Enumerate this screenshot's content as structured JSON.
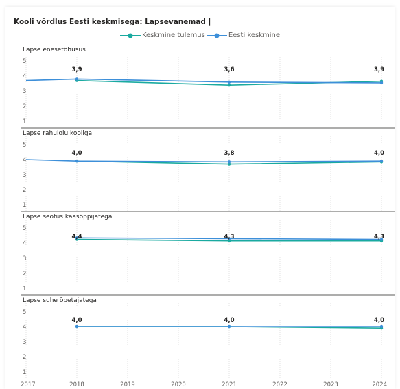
{
  "title": "Kooli võrdlus Eesti keskmisega: Lapsevanemad |",
  "colors": {
    "series1": "#1aaaa0",
    "series2": "#3d8fd9",
    "divider": "#252423",
    "grid": "#d9d9d9"
  },
  "chart_data": {
    "type": "line",
    "x_ticks": [
      "2017",
      "2018",
      "2019",
      "2020",
      "2021",
      "2022",
      "2023",
      "2024"
    ],
    "xlim": [
      2017,
      2024
    ],
    "ylim": [
      1,
      5
    ],
    "y_ticks": [
      "1",
      "2",
      "3",
      "4",
      "5"
    ],
    "grid": true,
    "legend_position": "top-center",
    "legend": [
      {
        "name": "Keskmine tulemus",
        "color": "#1aaaa0"
      },
      {
        "name": "Eesti keskmine",
        "color": "#3d8fd9"
      }
    ],
    "panels": [
      {
        "label": "Lapse enesetõhusus",
        "series": [
          {
            "name": "Keskmine tulemus",
            "x": [
              2018,
              2021,
              2024
            ],
            "y": [
              3.7,
              3.4,
              3.65
            ]
          },
          {
            "name": "Eesti keskmine",
            "x": [
              2017,
              2018,
              2021,
              2024
            ],
            "y": [
              3.7,
              3.8,
              3.6,
              3.55
            ]
          }
        ],
        "data_labels": [
          {
            "x": 2018,
            "text": "3,9"
          },
          {
            "x": 2021,
            "text": "3,6"
          },
          {
            "x": 2024,
            "text": "3,9"
          }
        ]
      },
      {
        "label": "Lapse rahulolu kooliga",
        "series": [
          {
            "name": "Keskmine tulemus",
            "x": [
              2018,
              2021,
              2024
            ],
            "y": [
              3.9,
              3.7,
              3.85
            ]
          },
          {
            "name": "Eesti keskmine",
            "x": [
              2017,
              2018,
              2021,
              2024
            ],
            "y": [
              4.0,
              3.9,
              3.85,
              3.9
            ]
          }
        ],
        "data_labels": [
          {
            "x": 2018,
            "text": "4,0"
          },
          {
            "x": 2021,
            "text": "3,8"
          },
          {
            "x": 2024,
            "text": "4,0"
          }
        ]
      },
      {
        "label": "Lapse seotus kaasõppijatega",
        "series": [
          {
            "name": "Keskmine tulemus",
            "x": [
              2018,
              2021,
              2024
            ],
            "y": [
              4.25,
              4.15,
              4.15
            ]
          },
          {
            "name": "Eesti keskmine",
            "x": [
              2018,
              2021,
              2024
            ],
            "y": [
              4.35,
              4.3,
              4.25
            ]
          }
        ],
        "data_labels": [
          {
            "x": 2018,
            "text": "4,4"
          },
          {
            "x": 2021,
            "text": "4,3"
          },
          {
            "x": 2024,
            "text": "4,3"
          }
        ]
      },
      {
        "label": "Lapse suhe õpetajatega",
        "series": [
          {
            "name": "Keskmine tulemus",
            "x": [
              2018,
              2021,
              2024
            ],
            "y": [
              4.0,
              4.0,
              3.9
            ]
          },
          {
            "name": "Eesti keskmine",
            "x": [
              2018,
              2021,
              2024
            ],
            "y": [
              4.0,
              4.0,
              4.0
            ]
          }
        ],
        "data_labels": [
          {
            "x": 2018,
            "text": "4,0"
          },
          {
            "x": 2021,
            "text": "4,0"
          },
          {
            "x": 2024,
            "text": "4,0"
          }
        ]
      }
    ]
  }
}
